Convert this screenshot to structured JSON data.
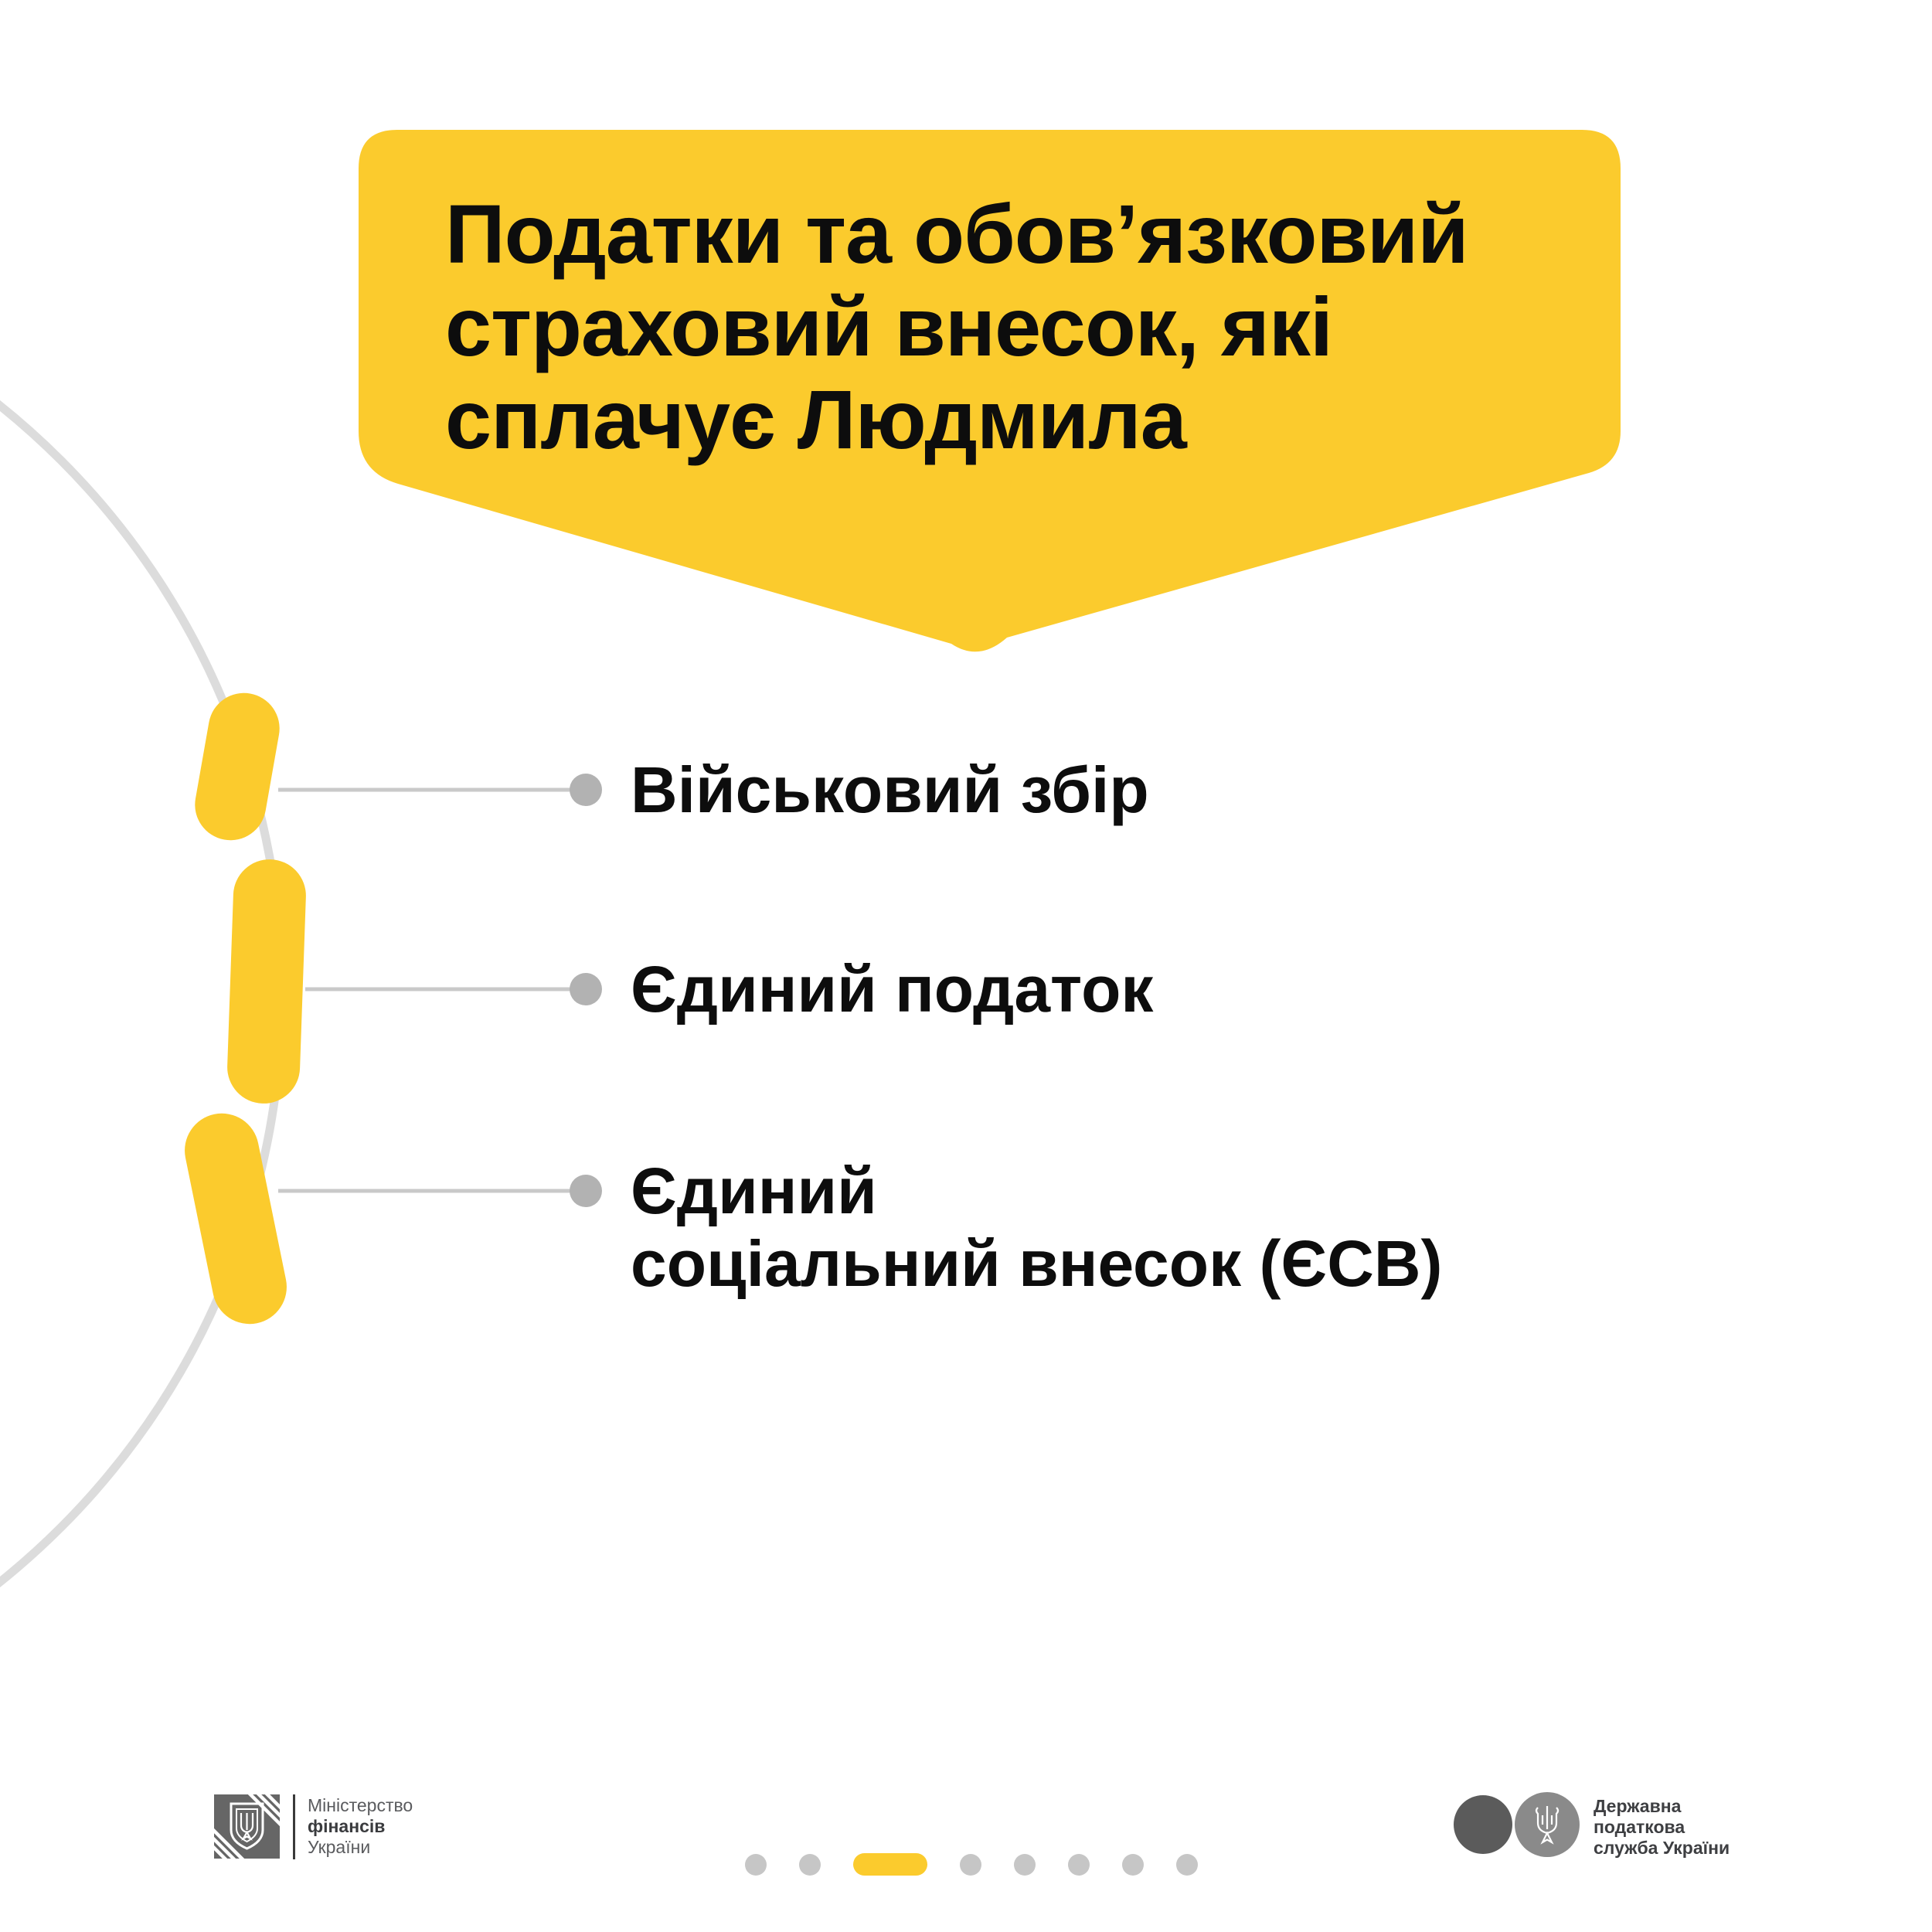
{
  "colors": {
    "accent_yellow": "#FBCB2D",
    "text_black": "#0D0D0D",
    "arc_gray": "#DCDCDC",
    "connector_gray": "#C9C9C9",
    "bullet_dot_gray": "#B2B2B2",
    "pagination_dot_gray": "#C6C6C6",
    "ministry_logo_gray": "#666666",
    "tax_circle_dark": "#5B5B5B",
    "tax_circle_light": "#8A8A8A",
    "footer_text_gray": "#5A5B5E",
    "footer_text_dark": "#3A3B3E"
  },
  "bubble": {
    "title_lines": [
      "Податки та обов’язковий",
      "страховий внесок, які",
      "сплачує Людмила"
    ]
  },
  "list": {
    "items": [
      {
        "lines": [
          "Військовий збір"
        ]
      },
      {
        "lines": [
          "Єдиний податок"
        ]
      },
      {
        "lines": [
          "Єдиний",
          "соціальний внесок (ЄСВ)"
        ]
      }
    ]
  },
  "footer": {
    "ministry": {
      "lines": [
        "Міністерство",
        "фінансів",
        "України"
      ]
    },
    "tax_service": {
      "lines": [
        "Державна",
        "податкова",
        "служба України"
      ]
    }
  },
  "pagination": {
    "total": 8,
    "active_index": 2
  }
}
